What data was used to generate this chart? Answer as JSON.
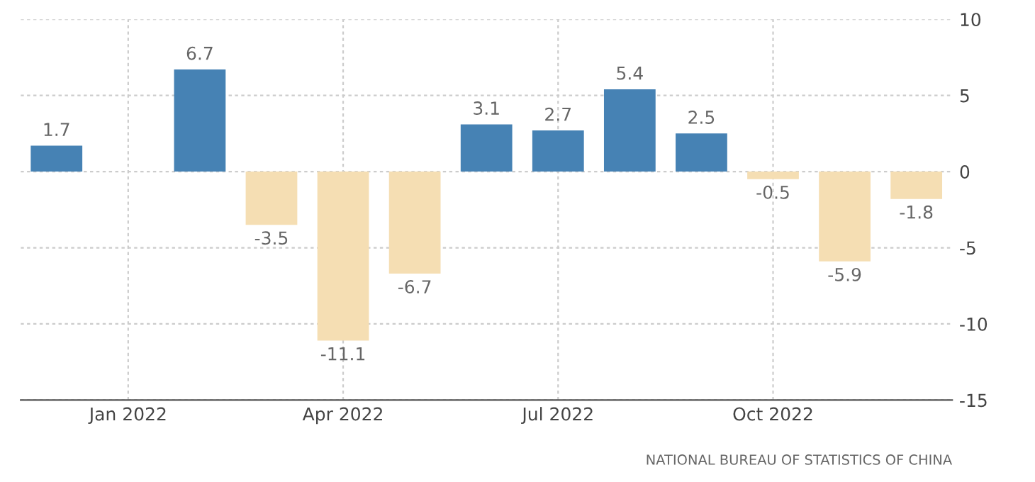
{
  "chart_data": {
    "type": "bar",
    "categories": [
      null,
      "Jan 2022",
      null,
      null,
      "Apr 2022",
      null,
      null,
      "Jul 2022",
      null,
      null,
      "Oct 2022",
      null,
      null
    ],
    "values": [
      1.7,
      null,
      6.7,
      -3.5,
      -11.1,
      -6.7,
      3.1,
      2.7,
      5.4,
      2.5,
      -0.5,
      -5.9,
      -1.8
    ],
    "colors": [
      "#4682b4",
      "#4682b4",
      "#4682b4",
      "#f5deb3",
      "#f5deb3",
      "#f5deb3",
      "#4682b4",
      "#4682b4",
      "#4682b4",
      "#4682b4",
      "#f5deb3",
      "#f5deb3",
      "#f5deb3"
    ],
    "ylim": [
      -15,
      10
    ],
    "yticks": [
      -15,
      -10,
      -5,
      0,
      5,
      10
    ],
    "grid": true,
    "data_labels": true,
    "annotations": [
      "NATIONAL BUREAU OF STATISTICS OF CHINA"
    ]
  }
}
